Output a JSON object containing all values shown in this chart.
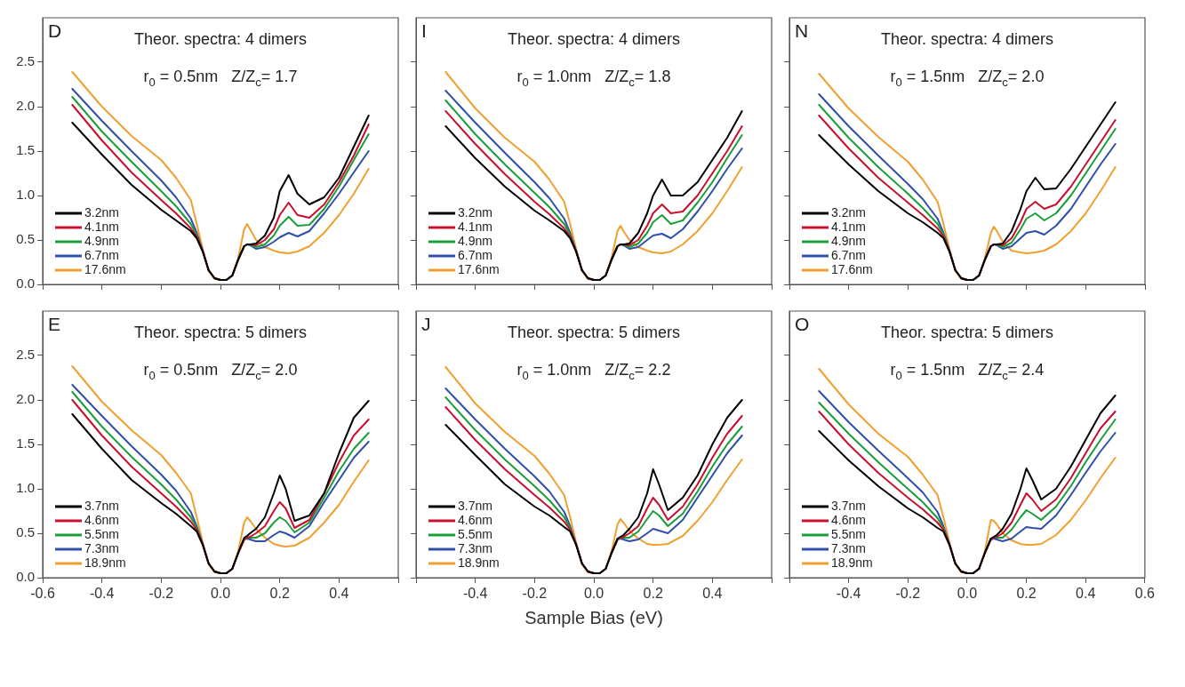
{
  "chart_data": [
    {
      "type": "line",
      "title": "Theor. spectra: 4 dimers",
      "subtitle": "r$_{0}$ = 0.5nm   Z/Z$_{c}$= 1.7",
      "annotations": [
        "D"
      ],
      "legend": "bottom left",
      "tick_labels": "y",
      "x": [
        -0.5,
        -0.4,
        -0.3,
        -0.2,
        -0.15,
        -0.1,
        -0.08,
        -0.06,
        -0.04,
        -0.02,
        0,
        0.02,
        0.04,
        0.06,
        0.08,
        0.09,
        0.1,
        0.12,
        0.15,
        0.18,
        0.2,
        0.23,
        0.26,
        0.3,
        0.35,
        0.4,
        0.45,
        0.5
      ],
      "xlim": [
        -0.6,
        0.6
      ],
      "xticks": [
        {
          "value": -0.6,
          "label": null
        },
        {
          "value": -0.4,
          "label": null
        },
        {
          "value": -0.2,
          "label": null
        },
        {
          "value": 0,
          "label": null
        },
        {
          "value": 0.2,
          "label": null
        },
        {
          "value": 0.4,
          "label": null
        },
        {
          "value": 0.6,
          "label": null
        }
      ],
      "ylim": [
        0,
        3
      ],
      "yticks": [
        {
          "value": 0,
          "label": "0.0"
        },
        {
          "value": 0.5,
          "label": "0.5"
        },
        {
          "value": 1,
          "label": "1.0"
        },
        {
          "value": 1.5,
          "label": "1.5"
        },
        {
          "value": 2,
          "label": "2.0"
        },
        {
          "value": 2.5,
          "label": "2.5"
        }
      ],
      "series": [
        {
          "name": "3.2nm",
          "color": "#000000",
          "values": [
            1.82,
            1.46,
            1.12,
            0.84,
            0.72,
            0.6,
            0.52,
            0.37,
            0.16,
            0.07,
            0.05,
            0.05,
            0.1,
            0.28,
            0.43,
            0.45,
            0.45,
            0.46,
            0.55,
            0.75,
            1.05,
            1.23,
            1.02,
            0.9,
            0.98,
            1.2,
            1.55,
            1.9
          ]
        },
        {
          "name": "4.1nm",
          "color": "#c8102e",
          "values": [
            2.02,
            1.62,
            1.26,
            0.95,
            0.8,
            0.63,
            0.54,
            0.38,
            0.16,
            0.07,
            0.05,
            0.05,
            0.1,
            0.28,
            0.43,
            0.45,
            0.45,
            0.44,
            0.5,
            0.62,
            0.78,
            0.92,
            0.78,
            0.75,
            0.9,
            1.15,
            1.45,
            1.8
          ]
        },
        {
          "name": "4.9nm",
          "color": "#1a9e3a",
          "values": [
            2.11,
            1.72,
            1.38,
            1.05,
            0.88,
            0.68,
            0.56,
            0.38,
            0.16,
            0.07,
            0.05,
            0.05,
            0.1,
            0.28,
            0.43,
            0.45,
            0.45,
            0.42,
            0.45,
            0.55,
            0.66,
            0.76,
            0.66,
            0.67,
            0.85,
            1.1,
            1.4,
            1.69
          ]
        },
        {
          "name": "6.7nm",
          "color": "#2f4fa8",
          "values": [
            2.2,
            1.84,
            1.5,
            1.17,
            0.98,
            0.74,
            0.58,
            0.38,
            0.16,
            0.07,
            0.05,
            0.05,
            0.1,
            0.28,
            0.43,
            0.45,
            0.44,
            0.4,
            0.42,
            0.48,
            0.53,
            0.58,
            0.54,
            0.6,
            0.8,
            1.02,
            1.26,
            1.5
          ]
        },
        {
          "name": "17.6nm",
          "color": "#f0a030",
          "values": [
            2.39,
            2.0,
            1.67,
            1.4,
            1.2,
            0.95,
            0.68,
            0.4,
            0.15,
            0.06,
            0.05,
            0.05,
            0.1,
            0.3,
            0.62,
            0.68,
            0.62,
            0.5,
            0.42,
            0.38,
            0.36,
            0.35,
            0.37,
            0.43,
            0.58,
            0.78,
            1.02,
            1.3
          ]
        }
      ]
    },
    {
      "type": "line",
      "title": "Theor. spectra: 4 dimers",
      "subtitle": "r$_{0}$ = 1.0nm   Z/Z$_{c}$= 1.8",
      "annotations": [
        "I"
      ],
      "legend": "bottom left",
      "tick_labels": false,
      "x": [
        -0.5,
        -0.4,
        -0.3,
        -0.2,
        -0.15,
        -0.1,
        -0.08,
        -0.06,
        -0.04,
        -0.02,
        0,
        0.02,
        0.04,
        0.06,
        0.08,
        0.09,
        0.1,
        0.12,
        0.15,
        0.18,
        0.2,
        0.23,
        0.26,
        0.3,
        0.35,
        0.4,
        0.45,
        0.5
      ],
      "xlim": [
        -0.6,
        0.6
      ],
      "xticks": [
        {
          "value": -0.6,
          "label": null
        },
        {
          "value": -0.4,
          "label": null
        },
        {
          "value": -0.2,
          "label": null
        },
        {
          "value": 0,
          "label": null
        },
        {
          "value": 0.2,
          "label": null
        },
        {
          "value": 0.4,
          "label": null
        },
        {
          "value": 0.6,
          "label": null
        }
      ],
      "ylim": [
        0,
        3
      ],
      "yticks": [
        {
          "value": 0,
          "label": null
        },
        {
          "value": 0.5,
          "label": null
        },
        {
          "value": 1,
          "label": null
        },
        {
          "value": 1.5,
          "label": null
        },
        {
          "value": 2,
          "label": null
        },
        {
          "value": 2.5,
          "label": null
        }
      ],
      "series": [
        {
          "name": "3.2nm",
          "color": "#000000",
          "values": [
            1.78,
            1.42,
            1.1,
            0.83,
            0.72,
            0.6,
            0.52,
            0.37,
            0.16,
            0.07,
            0.05,
            0.05,
            0.1,
            0.28,
            0.43,
            0.45,
            0.45,
            0.46,
            0.58,
            0.8,
            1.0,
            1.18,
            1.0,
            1.0,
            1.15,
            1.4,
            1.65,
            1.95
          ]
        },
        {
          "name": "4.1nm",
          "color": "#c8102e",
          "values": [
            1.95,
            1.58,
            1.24,
            0.93,
            0.79,
            0.63,
            0.54,
            0.38,
            0.16,
            0.07,
            0.05,
            0.05,
            0.1,
            0.28,
            0.43,
            0.45,
            0.45,
            0.44,
            0.5,
            0.66,
            0.8,
            0.9,
            0.8,
            0.82,
            1.0,
            1.25,
            1.5,
            1.78
          ]
        },
        {
          "name": "4.9nm",
          "color": "#1a9e3a",
          "values": [
            2.07,
            1.69,
            1.35,
            1.03,
            0.87,
            0.68,
            0.56,
            0.38,
            0.16,
            0.07,
            0.05,
            0.05,
            0.1,
            0.28,
            0.43,
            0.45,
            0.45,
            0.42,
            0.46,
            0.58,
            0.7,
            0.78,
            0.68,
            0.72,
            0.92,
            1.15,
            1.42,
            1.68
          ]
        },
        {
          "name": "6.7nm",
          "color": "#2f4fa8",
          "values": [
            2.18,
            1.82,
            1.48,
            1.15,
            0.97,
            0.74,
            0.58,
            0.38,
            0.16,
            0.07,
            0.05,
            0.05,
            0.1,
            0.28,
            0.43,
            0.45,
            0.44,
            0.4,
            0.42,
            0.5,
            0.55,
            0.57,
            0.52,
            0.62,
            0.82,
            1.05,
            1.3,
            1.53
          ]
        },
        {
          "name": "17.6nm",
          "color": "#f0a030",
          "values": [
            2.39,
            1.98,
            1.65,
            1.38,
            1.18,
            0.93,
            0.68,
            0.4,
            0.15,
            0.06,
            0.05,
            0.05,
            0.1,
            0.3,
            0.6,
            0.66,
            0.6,
            0.5,
            0.42,
            0.38,
            0.36,
            0.35,
            0.37,
            0.45,
            0.6,
            0.8,
            1.05,
            1.32
          ]
        }
      ]
    },
    {
      "type": "line",
      "title": "Theor. spectra: 4 dimers",
      "subtitle": "r$_{0}$ = 1.5nm   Z/Z$_{c}$= 2.0",
      "annotations": [
        "N"
      ],
      "legend": "bottom left",
      "tick_labels": false,
      "x": [
        -0.5,
        -0.4,
        -0.3,
        -0.2,
        -0.15,
        -0.1,
        -0.08,
        -0.06,
        -0.04,
        -0.02,
        0,
        0.02,
        0.04,
        0.06,
        0.08,
        0.09,
        0.1,
        0.12,
        0.15,
        0.18,
        0.2,
        0.23,
        0.26,
        0.3,
        0.35,
        0.4,
        0.45,
        0.5
      ],
      "xlim": [
        -0.6,
        0.6
      ],
      "xticks": [
        {
          "value": -0.6,
          "label": null
        },
        {
          "value": -0.4,
          "label": null
        },
        {
          "value": -0.2,
          "label": null
        },
        {
          "value": 0,
          "label": null
        },
        {
          "value": 0.2,
          "label": null
        },
        {
          "value": 0.4,
          "label": null
        },
        {
          "value": 0.6,
          "label": null
        }
      ],
      "ylim": [
        0,
        3
      ],
      "yticks": [
        {
          "value": 0,
          "label": null
        },
        {
          "value": 0.5,
          "label": null
        },
        {
          "value": 1,
          "label": null
        },
        {
          "value": 1.5,
          "label": null
        },
        {
          "value": 2,
          "label": null
        },
        {
          "value": 2.5,
          "label": null
        }
      ],
      "series": [
        {
          "name": "3.2nm",
          "color": "#000000",
          "values": [
            1.68,
            1.35,
            1.05,
            0.8,
            0.7,
            0.58,
            0.52,
            0.37,
            0.16,
            0.07,
            0.05,
            0.05,
            0.1,
            0.28,
            0.43,
            0.45,
            0.45,
            0.46,
            0.6,
            0.85,
            1.05,
            1.2,
            1.07,
            1.08,
            1.3,
            1.55,
            1.8,
            2.05
          ]
        },
        {
          "name": "4.1nm",
          "color": "#c8102e",
          "values": [
            1.9,
            1.53,
            1.2,
            0.92,
            0.78,
            0.63,
            0.54,
            0.38,
            0.16,
            0.07,
            0.05,
            0.05,
            0.1,
            0.28,
            0.43,
            0.45,
            0.45,
            0.44,
            0.52,
            0.7,
            0.85,
            0.93,
            0.85,
            0.9,
            1.1,
            1.35,
            1.6,
            1.85
          ]
        },
        {
          "name": "4.9nm",
          "color": "#1a9e3a",
          "values": [
            2.02,
            1.65,
            1.32,
            1.02,
            0.86,
            0.68,
            0.56,
            0.38,
            0.16,
            0.07,
            0.05,
            0.05,
            0.1,
            0.28,
            0.43,
            0.45,
            0.45,
            0.42,
            0.47,
            0.62,
            0.74,
            0.8,
            0.72,
            0.8,
            1.0,
            1.25,
            1.5,
            1.75
          ]
        },
        {
          "name": "6.7nm",
          "color": "#2f4fa8",
          "values": [
            2.14,
            1.78,
            1.45,
            1.13,
            0.96,
            0.74,
            0.58,
            0.38,
            0.16,
            0.07,
            0.05,
            0.05,
            0.1,
            0.28,
            0.43,
            0.45,
            0.44,
            0.4,
            0.43,
            0.52,
            0.58,
            0.6,
            0.56,
            0.66,
            0.85,
            1.1,
            1.35,
            1.58
          ]
        },
        {
          "name": "17.6nm",
          "color": "#f0a030",
          "values": [
            2.37,
            1.98,
            1.66,
            1.38,
            1.18,
            0.93,
            0.68,
            0.4,
            0.15,
            0.06,
            0.05,
            0.05,
            0.1,
            0.3,
            0.58,
            0.65,
            0.6,
            0.48,
            0.38,
            0.36,
            0.35,
            0.36,
            0.38,
            0.45,
            0.6,
            0.8,
            1.05,
            1.32
          ]
        }
      ]
    },
    {
      "type": "line",
      "title": "Theor. spectra: 5 dimers",
      "subtitle": "r$_{0}$ = 0.5nm   Z/Z$_{c}$= 2.0",
      "annotations": [
        "E"
      ],
      "legend": "bottom left",
      "x": [
        -0.5,
        -0.4,
        -0.3,
        -0.2,
        -0.15,
        -0.1,
        -0.08,
        -0.06,
        -0.04,
        -0.02,
        0,
        0.02,
        0.04,
        0.06,
        0.08,
        0.09,
        0.1,
        0.12,
        0.15,
        0.18,
        0.2,
        0.22,
        0.25,
        0.3,
        0.35,
        0.4,
        0.45,
        0.5
      ],
      "xlim": [
        -0.6,
        0.6
      ],
      "xticks": [
        {
          "value": -0.6,
          "label": "-0.6"
        },
        {
          "value": -0.4,
          "label": "-0.4"
        },
        {
          "value": -0.2,
          "label": "-0.2"
        },
        {
          "value": 0,
          "label": "0.0"
        },
        {
          "value": 0.2,
          "label": "0.2"
        },
        {
          "value": 0.4,
          "label": "0.4"
        },
        {
          "value": 0.6,
          "label": null
        }
      ],
      "ylim": [
        0,
        3
      ],
      "yticks": [
        {
          "value": 0,
          "label": "0.0"
        },
        {
          "value": 0.5,
          "label": "0.5"
        },
        {
          "value": 1,
          "label": "1.0"
        },
        {
          "value": 1.5,
          "label": "1.5"
        },
        {
          "value": 2,
          "label": "2.0"
        },
        {
          "value": 2.5,
          "label": "2.5"
        }
      ],
      "series": [
        {
          "name": "3.7nm",
          "color": "#000000",
          "values": [
            1.84,
            1.45,
            1.1,
            0.84,
            0.72,
            0.58,
            0.52,
            0.37,
            0.16,
            0.07,
            0.05,
            0.05,
            0.1,
            0.28,
            0.45,
            0.47,
            0.5,
            0.55,
            0.68,
            0.95,
            1.15,
            1.0,
            0.64,
            0.7,
            0.95,
            1.4,
            1.8,
            1.99
          ]
        },
        {
          "name": "4.6nm",
          "color": "#c8102e",
          "values": [
            2.0,
            1.6,
            1.25,
            0.95,
            0.8,
            0.63,
            0.54,
            0.38,
            0.16,
            0.07,
            0.05,
            0.05,
            0.1,
            0.28,
            0.43,
            0.45,
            0.46,
            0.5,
            0.58,
            0.75,
            0.85,
            0.78,
            0.56,
            0.65,
            0.95,
            1.3,
            1.6,
            1.78
          ]
        },
        {
          "name": "5.5nm",
          "color": "#1a9e3a",
          "values": [
            2.09,
            1.7,
            1.36,
            1.05,
            0.88,
            0.68,
            0.56,
            0.38,
            0.16,
            0.07,
            0.05,
            0.05,
            0.1,
            0.28,
            0.43,
            0.45,
            0.45,
            0.45,
            0.5,
            0.62,
            0.68,
            0.64,
            0.51,
            0.62,
            0.9,
            1.2,
            1.45,
            1.63
          ]
        },
        {
          "name": "7.3nm",
          "color": "#2f4fa8",
          "values": [
            2.17,
            1.82,
            1.48,
            1.16,
            0.98,
            0.74,
            0.58,
            0.38,
            0.16,
            0.07,
            0.05,
            0.05,
            0.1,
            0.28,
            0.43,
            0.44,
            0.43,
            0.41,
            0.41,
            0.48,
            0.52,
            0.5,
            0.45,
            0.58,
            0.85,
            1.1,
            1.35,
            1.53
          ]
        },
        {
          "name": "18.9nm",
          "color": "#f0a030",
          "values": [
            2.38,
            1.98,
            1.66,
            1.38,
            1.18,
            0.95,
            0.68,
            0.4,
            0.15,
            0.06,
            0.05,
            0.05,
            0.1,
            0.3,
            0.62,
            0.68,
            0.64,
            0.55,
            0.45,
            0.38,
            0.36,
            0.35,
            0.36,
            0.45,
            0.62,
            0.82,
            1.08,
            1.32
          ]
        }
      ]
    },
    {
      "type": "line",
      "title": "Theor. spectra: 5 dimers",
      "subtitle": "r$_{0}$ = 1.0nm   Z/Z$_{c}$= 2.2",
      "annotations": [
        "J"
      ],
      "xlabel": "Sample Bias (eV)",
      "legend": "bottom left",
      "tick_labels": "x",
      "x": [
        -0.5,
        -0.4,
        -0.3,
        -0.2,
        -0.15,
        -0.1,
        -0.08,
        -0.06,
        -0.04,
        -0.02,
        0,
        0.02,
        0.04,
        0.06,
        0.08,
        0.09,
        0.1,
        0.12,
        0.15,
        0.18,
        0.2,
        0.22,
        0.25,
        0.3,
        0.35,
        0.4,
        0.45,
        0.5
      ],
      "xlim": [
        -0.6,
        0.6
      ],
      "xticks": [
        {
          "value": -0.6,
          "label": null
        },
        {
          "value": -0.4,
          "label": "-0.4"
        },
        {
          "value": -0.2,
          "label": "-0.2"
        },
        {
          "value": 0,
          "label": "0.0"
        },
        {
          "value": 0.2,
          "label": "0.2"
        },
        {
          "value": 0.4,
          "label": "0.4"
        },
        {
          "value": 0.6,
          "label": null
        }
      ],
      "ylim": [
        0,
        3
      ],
      "yticks": [
        {
          "value": 0,
          "label": null
        },
        {
          "value": 0.5,
          "label": null
        },
        {
          "value": 1,
          "label": null
        },
        {
          "value": 1.5,
          "label": null
        },
        {
          "value": 2,
          "label": null
        },
        {
          "value": 2.5,
          "label": null
        }
      ],
      "series": [
        {
          "name": "3.7nm",
          "color": "#000000",
          "values": [
            1.72,
            1.38,
            1.05,
            0.8,
            0.7,
            0.57,
            0.52,
            0.37,
            0.16,
            0.07,
            0.05,
            0.05,
            0.1,
            0.28,
            0.44,
            0.46,
            0.48,
            0.55,
            0.68,
            0.95,
            1.22,
            1.05,
            0.76,
            0.9,
            1.15,
            1.5,
            1.8,
            2.0
          ]
        },
        {
          "name": "4.6nm",
          "color": "#c8102e",
          "values": [
            1.92,
            1.55,
            1.22,
            0.93,
            0.79,
            0.63,
            0.54,
            0.38,
            0.16,
            0.07,
            0.05,
            0.05,
            0.1,
            0.28,
            0.43,
            0.45,
            0.46,
            0.5,
            0.58,
            0.78,
            0.9,
            0.82,
            0.65,
            0.8,
            1.05,
            1.35,
            1.62,
            1.82
          ]
        },
        {
          "name": "5.5nm",
          "color": "#1a9e3a",
          "values": [
            2.03,
            1.66,
            1.33,
            1.03,
            0.87,
            0.68,
            0.56,
            0.38,
            0.16,
            0.07,
            0.05,
            0.05,
            0.1,
            0.28,
            0.43,
            0.45,
            0.45,
            0.45,
            0.52,
            0.66,
            0.75,
            0.7,
            0.58,
            0.72,
            0.97,
            1.25,
            1.5,
            1.7
          ]
        },
        {
          "name": "7.3nm",
          "color": "#2f4fa8",
          "values": [
            2.13,
            1.78,
            1.45,
            1.14,
            0.97,
            0.74,
            0.58,
            0.38,
            0.16,
            0.07,
            0.05,
            0.05,
            0.1,
            0.28,
            0.43,
            0.44,
            0.43,
            0.41,
            0.43,
            0.5,
            0.55,
            0.53,
            0.5,
            0.65,
            0.9,
            1.15,
            1.4,
            1.6
          ]
        },
        {
          "name": "18.9nm",
          "color": "#f0a030",
          "values": [
            2.37,
            1.96,
            1.64,
            1.37,
            1.17,
            0.93,
            0.68,
            0.4,
            0.15,
            0.06,
            0.05,
            0.05,
            0.1,
            0.3,
            0.6,
            0.66,
            0.62,
            0.53,
            0.44,
            0.38,
            0.37,
            0.37,
            0.38,
            0.47,
            0.64,
            0.85,
            1.1,
            1.33
          ]
        }
      ]
    },
    {
      "type": "line",
      "title": "Theor. spectra: 5 dimers",
      "subtitle": "r$_{0}$ = 1.5nm   Z/Z$_{c}$= 2.4",
      "annotations": [
        "O"
      ],
      "legend": "bottom left",
      "tick_labels": "x",
      "x": [
        -0.5,
        -0.4,
        -0.3,
        -0.2,
        -0.15,
        -0.1,
        -0.08,
        -0.06,
        -0.04,
        -0.02,
        0,
        0.02,
        0.04,
        0.06,
        0.08,
        0.09,
        0.1,
        0.12,
        0.15,
        0.18,
        0.2,
        0.22,
        0.25,
        0.3,
        0.35,
        0.4,
        0.45,
        0.5
      ],
      "xlim": [
        -0.6,
        0.6
      ],
      "xticks": [
        {
          "value": -0.6,
          "label": null
        },
        {
          "value": -0.4,
          "label": "-0.4"
        },
        {
          "value": -0.2,
          "label": "-0.2"
        },
        {
          "value": 0,
          "label": "0.0"
        },
        {
          "value": 0.2,
          "label": "0.2"
        },
        {
          "value": 0.4,
          "label": "0.4"
        },
        {
          "value": 0.6,
          "label": "0.6"
        }
      ],
      "ylim": [
        0,
        3
      ],
      "yticks": [
        {
          "value": 0,
          "label": null
        },
        {
          "value": 0.5,
          "label": null
        },
        {
          "value": 1,
          "label": null
        },
        {
          "value": 1.5,
          "label": null
        },
        {
          "value": 2,
          "label": null
        },
        {
          "value": 2.5,
          "label": null
        }
      ],
      "series": [
        {
          "name": "3.7nm",
          "color": "#000000",
          "values": [
            1.65,
            1.32,
            1.03,
            0.78,
            0.68,
            0.56,
            0.52,
            0.37,
            0.16,
            0.07,
            0.05,
            0.05,
            0.1,
            0.28,
            0.44,
            0.46,
            0.48,
            0.55,
            0.72,
            1.0,
            1.23,
            1.1,
            0.88,
            1.0,
            1.25,
            1.55,
            1.85,
            2.05
          ]
        },
        {
          "name": "4.6nm",
          "color": "#c8102e",
          "values": [
            1.87,
            1.5,
            1.18,
            0.9,
            0.77,
            0.62,
            0.54,
            0.38,
            0.16,
            0.07,
            0.05,
            0.05,
            0.1,
            0.28,
            0.43,
            0.45,
            0.46,
            0.5,
            0.62,
            0.82,
            0.95,
            0.88,
            0.75,
            0.88,
            1.12,
            1.4,
            1.68,
            1.87
          ]
        },
        {
          "name": "5.5nm",
          "color": "#1a9e3a",
          "values": [
            1.97,
            1.62,
            1.3,
            1.0,
            0.85,
            0.67,
            0.56,
            0.38,
            0.16,
            0.07,
            0.05,
            0.05,
            0.1,
            0.28,
            0.43,
            0.45,
            0.45,
            0.45,
            0.54,
            0.68,
            0.76,
            0.72,
            0.65,
            0.8,
            1.03,
            1.3,
            1.55,
            1.78
          ]
        },
        {
          "name": "7.3nm",
          "color": "#2f4fa8",
          "values": [
            2.1,
            1.75,
            1.43,
            1.12,
            0.96,
            0.74,
            0.58,
            0.38,
            0.16,
            0.07,
            0.05,
            0.05,
            0.1,
            0.28,
            0.43,
            0.44,
            0.43,
            0.41,
            0.44,
            0.52,
            0.57,
            0.56,
            0.55,
            0.7,
            0.93,
            1.18,
            1.42,
            1.63
          ]
        },
        {
          "name": "18.9nm",
          "color": "#f0a030",
          "values": [
            2.35,
            1.95,
            1.62,
            1.36,
            1.16,
            0.93,
            0.68,
            0.4,
            0.15,
            0.06,
            0.05,
            0.05,
            0.1,
            0.3,
            0.65,
            0.64,
            0.6,
            0.5,
            0.42,
            0.38,
            0.37,
            0.37,
            0.38,
            0.48,
            0.65,
            0.87,
            1.12,
            1.35
          ]
        }
      ]
    }
  ]
}
